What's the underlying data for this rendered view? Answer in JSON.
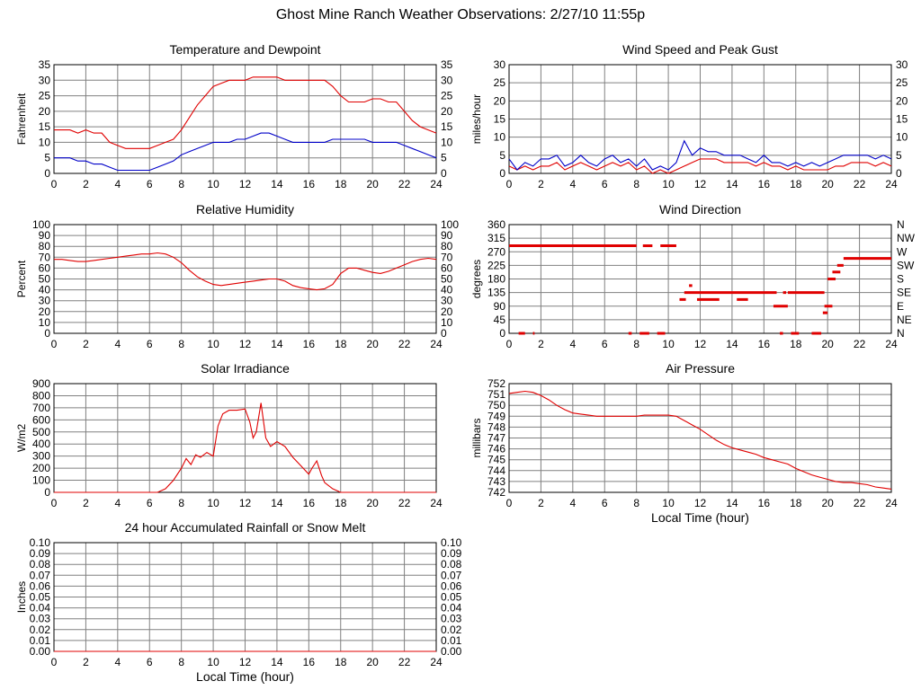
{
  "page_title": "Ghost Mine Ranch Weather Observations: 2/27/10 11:55p",
  "colors": {
    "red": "#e00000",
    "blue": "#0000c8",
    "grid": "#808080"
  },
  "chart_data": [
    {
      "id": "temp",
      "type": "line",
      "title": "Temperature and Dewpoint",
      "xlabel": "",
      "ylabel": "Fahrenheit",
      "ylim": [
        0,
        35
      ],
      "ystep": 5,
      "right_axis": true,
      "xlim": [
        0,
        24
      ],
      "series": [
        {
          "color": "red",
          "x": [
            0,
            0.5,
            1,
            1.5,
            2,
            2.5,
            3,
            3.5,
            4,
            4.5,
            5,
            5.5,
            6,
            6.5,
            7,
            7.5,
            8,
            8.5,
            9,
            9.5,
            10,
            10.5,
            11,
            11.5,
            12,
            12.5,
            13,
            13.5,
            14,
            14.5,
            15,
            15.5,
            16,
            16.5,
            17,
            17.5,
            18,
            18.5,
            19,
            19.5,
            20,
            20.5,
            21,
            21.5,
            22,
            22.5,
            23,
            23.5,
            24
          ],
          "y": [
            14,
            14,
            14,
            13,
            14,
            13,
            13,
            10,
            9,
            8,
            8,
            8,
            8,
            9,
            10,
            11,
            14,
            18,
            22,
            25,
            28,
            29,
            30,
            30,
            30,
            31,
            31,
            31,
            31,
            30,
            30,
            30,
            30,
            30,
            30,
            28,
            25,
            23,
            23,
            23,
            24,
            24,
            23,
            23,
            20,
            17,
            15,
            14,
            13
          ]
        },
        {
          "color": "blue",
          "x": [
            0,
            0.5,
            1,
            1.5,
            2,
            2.5,
            3,
            3.5,
            4,
            4.5,
            5,
            5.5,
            6,
            6.5,
            7,
            7.5,
            8,
            8.5,
            9,
            9.5,
            10,
            10.5,
            11,
            11.5,
            12,
            12.5,
            13,
            13.5,
            14,
            14.5,
            15,
            15.5,
            16,
            16.5,
            17,
            17.5,
            18,
            18.5,
            19,
            19.5,
            20,
            20.5,
            21,
            21.5,
            22,
            22.5,
            23,
            23.5,
            24
          ],
          "y": [
            5,
            5,
            5,
            4,
            4,
            3,
            3,
            2,
            1,
            1,
            1,
            1,
            1,
            2,
            3,
            4,
            6,
            7,
            8,
            9,
            10,
            10,
            10,
            11,
            11,
            12,
            13,
            13,
            12,
            11,
            10,
            10,
            10,
            10,
            10,
            11,
            11,
            11,
            11,
            11,
            10,
            10,
            10,
            10,
            9,
            8,
            7,
            6,
            5
          ]
        }
      ]
    },
    {
      "id": "wind",
      "type": "line",
      "title": "Wind Speed and Peak Gust",
      "xlabel": "",
      "ylabel": "miles/hour",
      "ylim": [
        0,
        30
      ],
      "ystep": 5,
      "right_axis": true,
      "xlim": [
        0,
        24
      ],
      "series": [
        {
          "color": "red",
          "x": [
            0,
            0.5,
            1,
            1.5,
            2,
            2.5,
            3,
            3.5,
            4,
            4.5,
            5,
            5.5,
            6,
            6.5,
            7,
            7.5,
            8,
            8.5,
            9,
            9.5,
            10,
            10.5,
            11,
            11.5,
            12,
            12.5,
            13,
            13.5,
            14,
            14.5,
            15,
            15.5,
            16,
            16.5,
            17,
            17.5,
            18,
            18.5,
            19,
            19.5,
            20,
            20.5,
            21,
            21.5,
            22,
            22.5,
            23,
            23.5,
            24
          ],
          "y": [
            2,
            1,
            2,
            1,
            2,
            2,
            3,
            1,
            2,
            3,
            2,
            1,
            2,
            3,
            2,
            3,
            1,
            2,
            0,
            1,
            0,
            1,
            2,
            3,
            4,
            4,
            4,
            3,
            3,
            3,
            3,
            2,
            3,
            2,
            2,
            1,
            2,
            1,
            1,
            1,
            1,
            2,
            2,
            3,
            3,
            3,
            2,
            3,
            2
          ]
        },
        {
          "color": "blue",
          "x": [
            0,
            0.5,
            1,
            1.5,
            2,
            2.5,
            3,
            3.5,
            4,
            4.5,
            5,
            5.5,
            6,
            6.5,
            7,
            7.5,
            8,
            8.5,
            9,
            9.5,
            10,
            10.5,
            11,
            11.5,
            12,
            12.5,
            13,
            13.5,
            14,
            14.5,
            15,
            15.5,
            16,
            16.5,
            17,
            17.5,
            18,
            18.5,
            19,
            19.5,
            20,
            20.5,
            21,
            21.5,
            22,
            22.5,
            23,
            23.5,
            24
          ],
          "y": [
            4,
            1,
            3,
            2,
            4,
            4,
            5,
            2,
            3,
            5,
            3,
            2,
            4,
            5,
            3,
            4,
            2,
            4,
            1,
            2,
            1,
            3,
            9,
            5,
            7,
            6,
            6,
            5,
            5,
            5,
            4,
            3,
            5,
            3,
            3,
            2,
            3,
            2,
            3,
            2,
            3,
            4,
            5,
            5,
            5,
            5,
            4,
            5,
            4
          ]
        }
      ]
    },
    {
      "id": "humidity",
      "type": "line",
      "title": "Relative Humidity",
      "xlabel": "",
      "ylabel": "Percent",
      "ylim": [
        0,
        100
      ],
      "ystep": 10,
      "right_axis": true,
      "xlim": [
        0,
        24
      ],
      "series": [
        {
          "color": "red",
          "x": [
            0,
            0.5,
            1,
            1.5,
            2,
            2.5,
            3,
            3.5,
            4,
            4.5,
            5,
            5.5,
            6,
            6.5,
            7,
            7.5,
            8,
            8.5,
            9,
            9.5,
            10,
            10.5,
            11,
            11.5,
            12,
            12.5,
            13,
            13.5,
            14,
            14.5,
            15,
            15.5,
            16,
            16.5,
            17,
            17.5,
            18,
            18.5,
            19,
            19.5,
            20,
            20.5,
            21,
            21.5,
            22,
            22.5,
            23,
            23.5,
            24
          ],
          "y": [
            68,
            68,
            67,
            66,
            66,
            67,
            68,
            69,
            70,
            71,
            72,
            73,
            73,
            74,
            73,
            70,
            65,
            58,
            52,
            48,
            45,
            44,
            45,
            46,
            47,
            48,
            49,
            50,
            50,
            48,
            44,
            42,
            41,
            40,
            41,
            45,
            55,
            60,
            60,
            58,
            56,
            55,
            57,
            60,
            63,
            66,
            68,
            69,
            68
          ]
        }
      ]
    },
    {
      "id": "direction",
      "type": "scatter",
      "title": "Wind Direction",
      "xlabel": "",
      "ylabel": "degrees",
      "ylim": [
        0,
        360
      ],
      "ystep": 45,
      "xlim": [
        0,
        24
      ],
      "right_labels": [
        "N",
        "NE",
        "E",
        "SE",
        "S",
        "SW",
        "W",
        "NW",
        "N"
      ],
      "segments": [
        [
          0,
          8,
          290
        ],
        [
          8.4,
          9,
          290
        ],
        [
          9.5,
          10.5,
          290
        ],
        [
          10.7,
          11.1,
          112
        ],
        [
          11,
          16.8,
          135
        ],
        [
          11.3,
          11.5,
          158
        ],
        [
          11.8,
          13.2,
          112
        ],
        [
          14.3,
          15,
          112
        ],
        [
          16.6,
          17.5,
          90
        ],
        [
          17.2,
          17.4,
          135
        ],
        [
          17.5,
          19.8,
          135
        ],
        [
          19.7,
          20,
          68
        ],
        [
          19.8,
          20.3,
          90
        ],
        [
          20,
          20.5,
          180
        ],
        [
          20.3,
          20.8,
          203
        ],
        [
          20.6,
          21,
          225
        ],
        [
          21,
          24,
          248
        ],
        [
          0.6,
          1,
          0
        ],
        [
          1.5,
          1.6,
          0
        ],
        [
          7.5,
          7.7,
          0
        ],
        [
          8.2,
          8.8,
          0
        ],
        [
          9.3,
          9.8,
          0
        ],
        [
          17,
          17.2,
          0
        ],
        [
          17.7,
          18.2,
          0
        ],
        [
          19,
          19.6,
          0
        ]
      ]
    },
    {
      "id": "solar",
      "type": "line",
      "title": "Solar Irradiance",
      "xlabel": "",
      "ylabel": "W/m2",
      "ylim": [
        0,
        900
      ],
      "ystep": 100,
      "right_axis": false,
      "xlim": [
        0,
        24
      ],
      "series": [
        {
          "color": "red",
          "x": [
            0,
            6.5,
            7,
            7.5,
            8,
            8.3,
            8.6,
            8.9,
            9.2,
            9.6,
            10,
            10.3,
            10.6,
            11,
            11.5,
            12,
            12.3,
            12.5,
            12.7,
            13,
            13.3,
            13.6,
            14,
            14.5,
            15,
            15.5,
            16,
            16.2,
            16.5,
            16.8,
            17,
            17.5,
            18,
            18.5,
            24
          ],
          "y": [
            0,
            0,
            30,
            100,
            200,
            280,
            230,
            310,
            290,
            330,
            300,
            550,
            650,
            680,
            680,
            690,
            580,
            450,
            500,
            740,
            450,
            380,
            420,
            380,
            290,
            220,
            150,
            200,
            260,
            140,
            80,
            30,
            0,
            0,
            0
          ]
        }
      ]
    },
    {
      "id": "pressure",
      "type": "line",
      "title": "Air Pressure",
      "xlabel": "Local Time (hour)",
      "ylabel": "millibars",
      "ylim": [
        742,
        752
      ],
      "ystep": 1,
      "right_axis": false,
      "xlim": [
        0,
        24
      ],
      "series": [
        {
          "color": "red",
          "x": [
            0,
            0.5,
            1,
            1.5,
            2,
            2.5,
            3,
            3.5,
            4,
            4.5,
            5,
            5.5,
            6,
            6.5,
            7,
            7.5,
            8,
            8.5,
            9,
            9.5,
            10,
            10.5,
            11,
            11.5,
            12,
            12.5,
            13,
            13.5,
            14,
            14.5,
            15,
            15.5,
            16,
            16.5,
            17,
            17.5,
            18,
            18.5,
            19,
            19.5,
            20,
            20.5,
            21,
            21.5,
            22,
            22.5,
            23,
            23.5,
            24
          ],
          "y": [
            751.1,
            751.2,
            751.3,
            751.2,
            750.9,
            750.5,
            750,
            749.6,
            749.3,
            749.2,
            749.1,
            749,
            749,
            749,
            749,
            749,
            749,
            749.1,
            749.1,
            749.1,
            749.1,
            749,
            748.6,
            748.2,
            747.8,
            747.3,
            746.8,
            746.4,
            746.1,
            745.9,
            745.7,
            745.5,
            745.2,
            745,
            744.8,
            744.6,
            744.2,
            743.9,
            743.6,
            743.4,
            743.2,
            743,
            742.9,
            742.9,
            742.8,
            742.7,
            742.5,
            742.4,
            742.3
          ]
        }
      ]
    },
    {
      "id": "rain",
      "type": "line",
      "title": "24 hour Accumulated Rainfall or Snow Melt",
      "xlabel": "Local Time (hour)",
      "ylabel": "Inches",
      "ylim": [
        0,
        0.1
      ],
      "ystep": 0.01,
      "right_axis": true,
      "decimals": 2,
      "xlim": [
        0,
        24
      ],
      "series": [
        {
          "color": "red",
          "x": [
            0,
            24
          ],
          "y": [
            0,
            0
          ]
        }
      ]
    }
  ]
}
